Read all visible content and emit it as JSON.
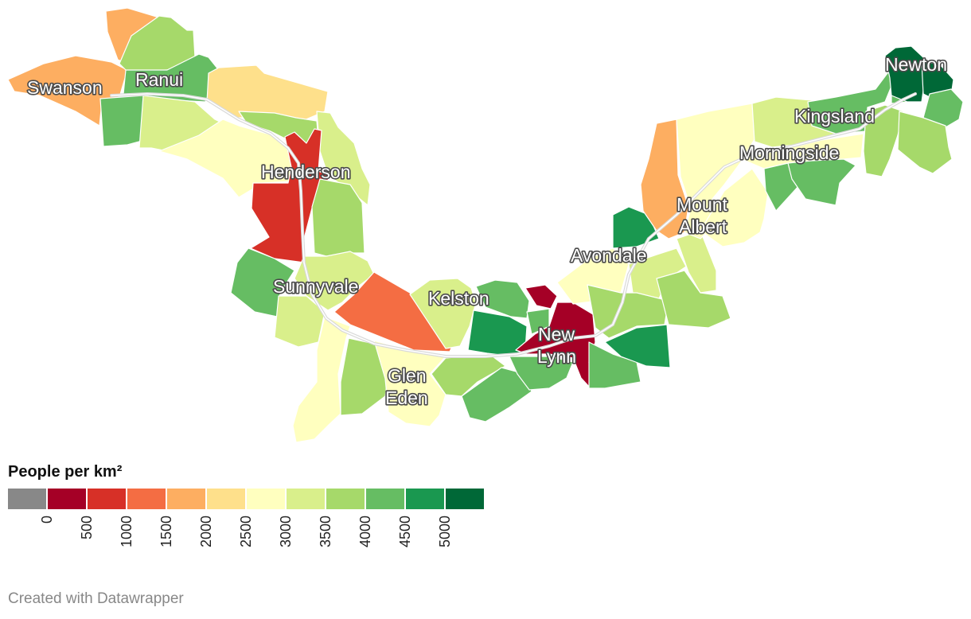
{
  "legend": {
    "title": "People per km²",
    "bins": [
      {
        "color": "#888888"
      },
      {
        "color": "#a50026"
      },
      {
        "color": "#d73027"
      },
      {
        "color": "#f46d43"
      },
      {
        "color": "#fdae61"
      },
      {
        "color": "#fee08b"
      },
      {
        "color": "#ffffbf"
      },
      {
        "color": "#d9ef8b"
      },
      {
        "color": "#a6d96a"
      },
      {
        "color": "#66bd63"
      },
      {
        "color": "#1a9850"
      },
      {
        "color": "#006837"
      }
    ],
    "ticks": [
      "0",
      "500",
      "1000",
      "1500",
      "2000",
      "2500",
      "3000",
      "3500",
      "4000",
      "4500",
      "5000"
    ]
  },
  "places": {
    "swanson": "Swanson",
    "ranui": "Ranui",
    "henderson": "Henderson",
    "sunnyvale": "Sunnyvale",
    "kelston": "Kelston",
    "glen_eden_1": "Glen",
    "glen_eden_2": "Eden",
    "new_lynn_1": "New",
    "new_lynn_2": "Lynn",
    "avondale": "Avondale",
    "mount_albert_1": "Mount",
    "mount_albert_2": "Albert",
    "morningside": "Morningside",
    "kingsland": "Kingsland",
    "newton": "Newton"
  },
  "credit": "Created with Datawrapper",
  "colors": {
    "rail": "#d9d9d9",
    "label_halo": "#4a4a4a"
  }
}
